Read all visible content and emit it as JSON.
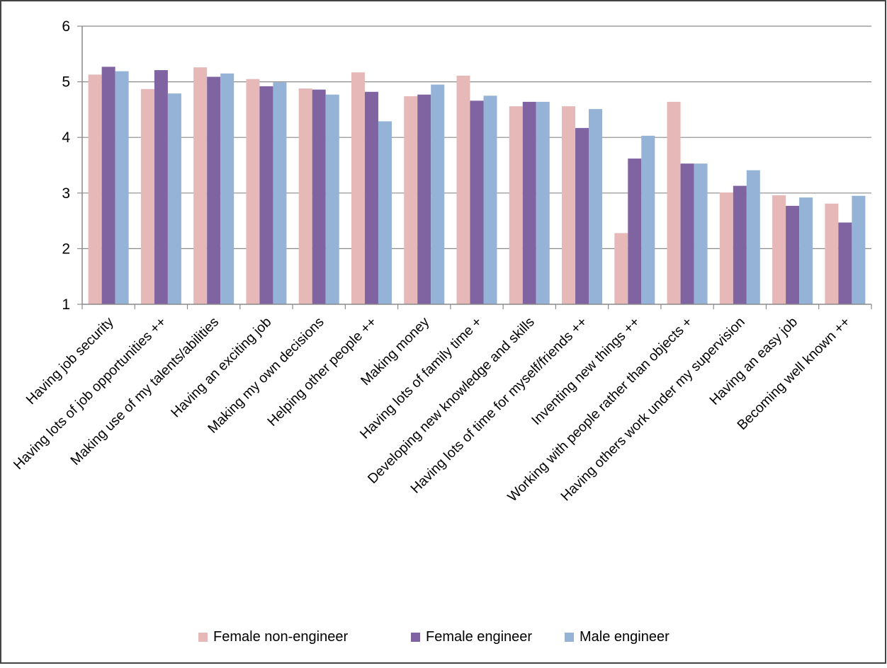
{
  "chart_data": {
    "type": "bar",
    "title": "",
    "xlabel": "",
    "ylabel": "",
    "ylim": [
      1,
      6
    ],
    "yticks": [
      1,
      2,
      3,
      4,
      5,
      6
    ],
    "grid": true,
    "legend_position": "bottom",
    "categories": [
      "Having job security",
      "Having lots of job opportunities ++",
      "Making use of my talents/abilities",
      "Having an exciting job",
      "Making my own decisions",
      "Helping other people ++",
      "Making money",
      "Having lots of family time +",
      "Developing new knowledge and skills",
      "Having lots of time for myself/friends ++",
      "Inventing new things ++",
      "Working with people rather than objects +",
      "Having others work under my supervision",
      "Having an easy job",
      "Becoming well known ++"
    ],
    "series": [
      {
        "name": "Female  non-engineer",
        "color": "#e6b9b8",
        "values": [
          5.13,
          4.87,
          5.26,
          5.05,
          4.88,
          5.17,
          4.74,
          5.11,
          4.56,
          4.56,
          2.28,
          4.64,
          3.01,
          2.96,
          2.81
        ]
      },
      {
        "name": "Female engineer",
        "color": "#8064a2",
        "values": [
          5.27,
          5.21,
          5.09,
          4.92,
          4.86,
          4.82,
          4.77,
          4.66,
          4.64,
          4.17,
          3.62,
          3.53,
          3.13,
          2.77,
          2.47
        ]
      },
      {
        "name": "Male engineer",
        "color": "#95b3d7",
        "values": [
          5.19,
          4.79,
          5.15,
          4.99,
          4.77,
          4.29,
          4.95,
          4.75,
          4.64,
          4.51,
          4.03,
          3.53,
          3.41,
          2.92,
          2.95
        ]
      }
    ]
  },
  "colors": {
    "gridline": "#8a8a8a",
    "axis": "#8a8a8a",
    "frame": "#444444"
  }
}
